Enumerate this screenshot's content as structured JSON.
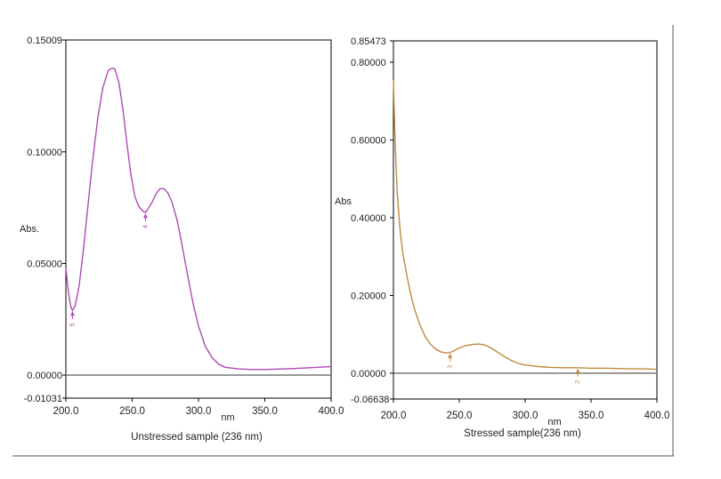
{
  "chart_data": [
    {
      "type": "line",
      "title": "",
      "xlabel": "nm",
      "ylabel": "Abs.",
      "caption": "Unstressed sample (236 nm)",
      "xlim": [
        200.0,
        400.0
      ],
      "ylim": [
        -0.01031,
        0.15009
      ],
      "x_ticks": [
        "200.0",
        "250.0",
        "300.0",
        "350.0",
        "400.0"
      ],
      "x_tick_values": [
        200,
        250,
        300,
        350,
        400
      ],
      "y_ticks": [
        "0.15009",
        "0.10000",
        "0.05000",
        "0.00000",
        "-0.01031"
      ],
      "y_tick_values": [
        0.15009,
        0.1,
        0.05,
        0.0,
        -0.01031
      ],
      "grid": false,
      "baseline": 0.0,
      "series": [
        {
          "color": "#b04ab8",
          "x": [
            200,
            201,
            202,
            203,
            204,
            205,
            207,
            210,
            213,
            216,
            220,
            224,
            228,
            232,
            235,
            236,
            237,
            240,
            243,
            246,
            249,
            252,
            255,
            258,
            260,
            262,
            265,
            268,
            271,
            274,
            277,
            280,
            284,
            288,
            292,
            296,
            300,
            305,
            310,
            315,
            320,
            330,
            340,
            350,
            360,
            370,
            380,
            390,
            400
          ],
          "y": [
            0.048,
            0.042,
            0.037,
            0.033,
            0.03,
            0.029,
            0.031,
            0.04,
            0.055,
            0.072,
            0.095,
            0.115,
            0.129,
            0.1365,
            0.1375,
            0.1374,
            0.137,
            0.131,
            0.119,
            0.104,
            0.09,
            0.08,
            0.0755,
            0.0735,
            0.0728,
            0.0745,
            0.0775,
            0.0812,
            0.0835,
            0.0835,
            0.0815,
            0.0775,
            0.069,
            0.057,
            0.044,
            0.032,
            0.022,
            0.013,
            0.008,
            0.005,
            0.0035,
            0.0028,
            0.0025,
            0.0025,
            0.0027,
            0.0029,
            0.0032,
            0.0035,
            0.0038
          ]
        }
      ],
      "markers": [
        {
          "label": "5",
          "x": 205,
          "y": 0.029
        },
        {
          "label": "4",
          "x": 260,
          "y": 0.0728
        }
      ]
    },
    {
      "type": "line",
      "title": "",
      "xlabel": "nm",
      "ylabel": "Abs",
      "caption": "Stressed sample(236 nm)",
      "xlim": [
        200.0,
        400.0
      ],
      "ylim": [
        -0.06638,
        0.85473
      ],
      "x_ticks": [
        "200.0",
        "250.0",
        "300.0",
        "350.0",
        "400.0"
      ],
      "x_tick_values": [
        200,
        250,
        300,
        350,
        400
      ],
      "y_ticks": [
        "0.85473",
        "0.80000",
        "0.60000",
        "0.40000",
        "0.20000",
        "0.00000",
        "-0.06638"
      ],
      "y_tick_values": [
        0.85473,
        0.8,
        0.6,
        0.4,
        0.2,
        0.0,
        -0.06638
      ],
      "grid": false,
      "baseline": 0.0,
      "series": [
        {
          "color": "#c08a3c",
          "x": [
            200,
            201,
            202,
            203,
            205,
            207,
            210,
            213,
            216,
            220,
            224,
            228,
            232,
            236,
            240,
            243,
            246,
            250,
            255,
            260,
            265,
            270,
            275,
            280,
            285,
            290,
            295,
            300,
            305,
            310,
            315,
            320,
            330,
            340,
            350,
            360,
            370,
            380,
            390,
            400
          ],
          "y": [
            0.755,
            0.62,
            0.53,
            0.46,
            0.37,
            0.31,
            0.255,
            0.205,
            0.165,
            0.125,
            0.095,
            0.075,
            0.062,
            0.055,
            0.052,
            0.053,
            0.058,
            0.065,
            0.071,
            0.074,
            0.075,
            0.072,
            0.063,
            0.052,
            0.041,
            0.032,
            0.025,
            0.021,
            0.019,
            0.017,
            0.016,
            0.015,
            0.014,
            0.014,
            0.013,
            0.013,
            0.012,
            0.011,
            0.011,
            0.01
          ]
        }
      ],
      "markers": [
        {
          "label": "3",
          "x": 243,
          "y": 0.053
        },
        {
          "label": "2",
          "x": 340,
          "y": 0.014
        }
      ]
    }
  ]
}
